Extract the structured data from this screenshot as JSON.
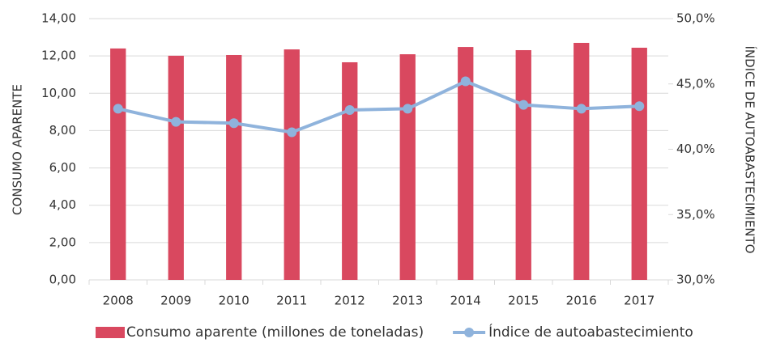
{
  "chart_data": {
    "type": "bar",
    "categories": [
      "2008",
      "2009",
      "2010",
      "2011",
      "2012",
      "2013",
      "2014",
      "2015",
      "2016",
      "2017"
    ],
    "series": [
      {
        "name": "Consumo aparente (millones de toneladas)",
        "type": "bar",
        "color": "#d9485f",
        "values": [
          12.4,
          12.01,
          12.05,
          12.35,
          11.66,
          12.09,
          12.48,
          12.31,
          12.7,
          12.44
        ]
      },
      {
        "name": "Índice de autoabastecimiento",
        "type": "line",
        "axis": "y2",
        "color": "#8fb3dc",
        "values": [
          43.1,
          42.1,
          42.0,
          41.3,
          43.0,
          43.1,
          45.2,
          43.4,
          43.1,
          43.3
        ]
      }
    ],
    "ylabel": "CONSUMO APARENTE",
    "y2label": "ÍNDICE DE AUTOABASTECIMIENTO",
    "ylim": [
      0,
      14
    ],
    "yticks": [
      {
        "value": 0,
        "label": "0,00"
      },
      {
        "value": 2,
        "label": "2,00"
      },
      {
        "value": 4,
        "label": "4,00"
      },
      {
        "value": 6,
        "label": "6,00"
      },
      {
        "value": 8,
        "label": "8,00"
      },
      {
        "value": 10,
        "label": "10,00"
      },
      {
        "value": 12,
        "label": "12,00"
      },
      {
        "value": 14,
        "label": "14,00"
      }
    ],
    "y2lim": [
      30,
      50
    ],
    "y2ticks": [
      {
        "value": 30,
        "label": "30,0%"
      },
      {
        "value": 35,
        "label": "35,0%"
      },
      {
        "value": 40,
        "label": "40,0%"
      },
      {
        "value": 45,
        "label": "45,0%"
      },
      {
        "value": 50,
        "label": "50,0%"
      }
    ],
    "grid": true,
    "legend": "bottom"
  }
}
